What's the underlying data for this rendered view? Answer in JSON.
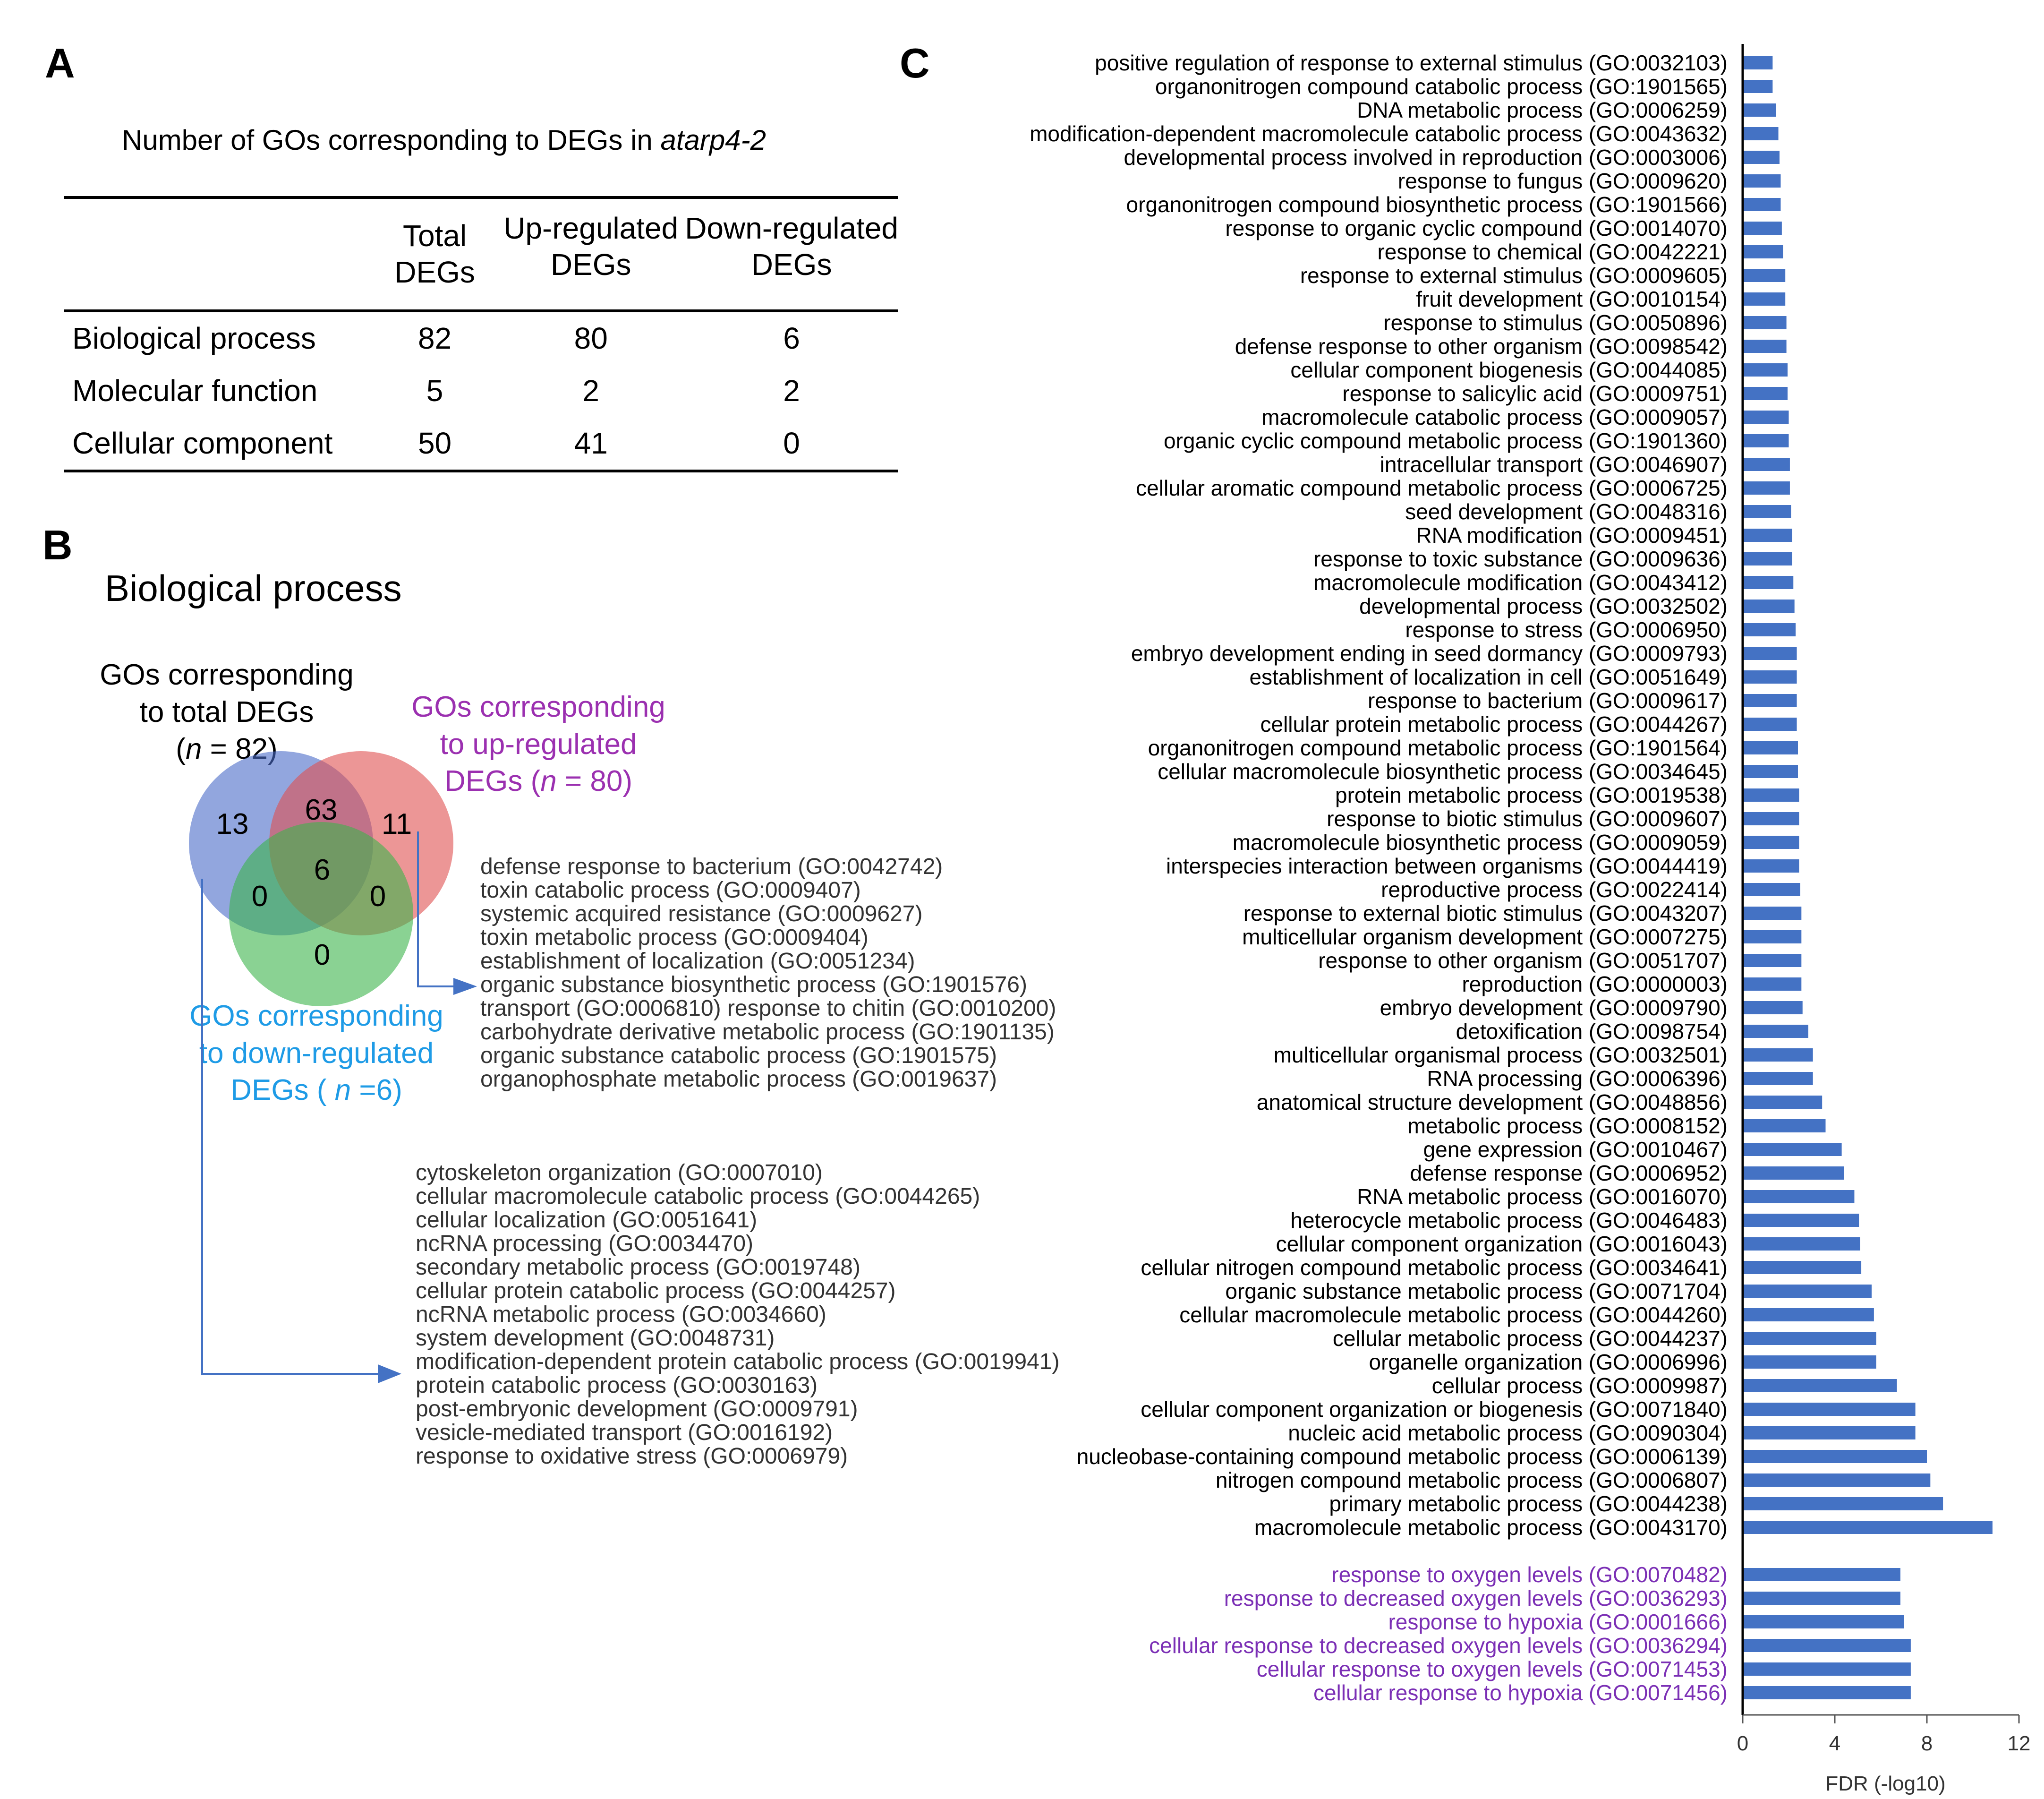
{
  "panel_letters": {
    "a": "A",
    "b": "B",
    "c": "C"
  },
  "table": {
    "caption_prefix": "Number of GOs corresponding to DEGs in ",
    "caption_italic": "atarp4-2",
    "headers": [
      {
        "line1": "Total",
        "line2": "DEGs"
      },
      {
        "line1": "Up-regulated",
        "line2": "DEGs"
      },
      {
        "line1": "Down-regulated",
        "line2": "DEGs"
      }
    ],
    "rows": [
      {
        "label": "Biological process",
        "total": "82",
        "up": "80",
        "down": "6"
      },
      {
        "label": "Molecular function",
        "total": "5",
        "up": "2",
        "down": "2"
      },
      {
        "label": "Cellular component",
        "total": "50",
        "up": "41",
        "down": "0"
      }
    ]
  },
  "venn": {
    "title": "Biological process",
    "label_total": {
      "line1": "GOs corresponding",
      "line2": "to total DEGs",
      "n_open": "(",
      "n_italic": "n",
      "n_rest": " = 82)"
    },
    "label_up": {
      "line1": "GOs corresponding",
      "line2": "to up-regulated",
      "line3_prefix": "DEGs (",
      "n_italic": "n",
      "n_rest": " = 80)"
    },
    "label_down": {
      "line1": "GOs corresponding",
      "line2": "to down-regulated",
      "line3_prefix": "DEGs ( ",
      "n_italic": "n",
      "n_rest": " =6)"
    },
    "regions": {
      "total_only": "13",
      "total_up": "63",
      "up_only": "11",
      "all_three": "6",
      "total_down": "0",
      "up_down": "0",
      "down_only": "0"
    },
    "colors": {
      "total": "#4a6bc8",
      "up": "#e05050",
      "down": "#3cb44b",
      "up_label": "#9b30b0",
      "down_label": "#1e9be6",
      "arrow": "#4472c4"
    }
  },
  "up_only_terms": [
    "defense response to bacterium (GO:0042742)",
    "toxin catabolic process (GO:0009407)",
    "systemic acquired resistance (GO:0009627)",
    "toxin metabolic process (GO:0009404)",
    "establishment of localization (GO:0051234)",
    "organic substance biosynthetic process (GO:1901576)",
    "transport (GO:0006810) response to chitin (GO:0010200)",
    "carbohydrate derivative metabolic process (GO:1901135)",
    "organic substance catabolic process (GO:1901575)",
    "organophosphate metabolic process (GO:0019637)"
  ],
  "total_only_terms": [
    "cytoskeleton organization (GO:0007010)",
    "cellular macromolecule catabolic process (GO:0044265)",
    "cellular localization (GO:0051641)",
    "ncRNA processing (GO:0034470)",
    "secondary metabolic process (GO:0019748)",
    "cellular protein catabolic process (GO:0044257)",
    "ncRNA metabolic process (GO:0034660)",
    "system development (GO:0048731)",
    "modification-dependent protein catabolic process (GO:0019941)",
    "protein catabolic process (GO:0030163)",
    "post-embryonic development (GO:0009791)",
    "vesicle-mediated transport (GO:0016192)",
    "response to oxidative stress (GO:0006979)"
  ],
  "chart_data": {
    "type": "bar",
    "orientation": "horizontal",
    "xlabel": "FDR (-log10)",
    "xlim": [
      0,
      12
    ],
    "xticks": [
      0,
      4,
      8,
      12
    ],
    "bar_color": "#4472c4",
    "groups": [
      {
        "name": "common",
        "label_color": "#000000",
        "bars": [
          {
            "label": "positive regulation of response to external stimulus (GO:0032103)",
            "value": 1.3
          },
          {
            "label": "organonitrogen compound catabolic process (GO:1901565)",
            "value": 1.3
          },
          {
            "label": "DNA metabolic process (GO:0006259)",
            "value": 1.45
          },
          {
            "label": "modification-dependent macromolecule catabolic process (GO:0043632)",
            "value": 1.55
          },
          {
            "label": "developmental process involved in reproduction (GO:0003006)",
            "value": 1.6
          },
          {
            "label": "response to fungus (GO:0009620)",
            "value": 1.65
          },
          {
            "label": "organonitrogen compound biosynthetic process (GO:1901566)",
            "value": 1.65
          },
          {
            "label": "response to organic cyclic compound (GO:0014070)",
            "value": 1.7
          },
          {
            "label": "response to chemical (GO:0042221)",
            "value": 1.75
          },
          {
            "label": "response to external stimulus (GO:0009605)",
            "value": 1.85
          },
          {
            "label": "fruit development (GO:0010154)",
            "value": 1.85
          },
          {
            "label": "response to stimulus (GO:0050896)",
            "value": 1.9
          },
          {
            "label": "defense response to other organism (GO:0098542)",
            "value": 1.9
          },
          {
            "label": "cellular component biogenesis (GO:0044085)",
            "value": 1.95
          },
          {
            "label": "response to salicylic acid (GO:0009751)",
            "value": 1.95
          },
          {
            "label": "macromolecule catabolic process (GO:0009057)",
            "value": 2.0
          },
          {
            "label": "organic cyclic compound metabolic process (GO:1901360)",
            "value": 2.0
          },
          {
            "label": "intracellular transport (GO:0046907)",
            "value": 2.05
          },
          {
            "label": "cellular aromatic compound metabolic process (GO:0006725)",
            "value": 2.05
          },
          {
            "label": "seed development (GO:0048316)",
            "value": 2.1
          },
          {
            "label": "RNA modification (GO:0009451)",
            "value": 2.15
          },
          {
            "label": "response to toxic substance (GO:0009636)",
            "value": 2.15
          },
          {
            "label": "macromolecule modification (GO:0043412)",
            "value": 2.2
          },
          {
            "label": "developmental process (GO:0032502)",
            "value": 2.25
          },
          {
            "label": "response to stress (GO:0006950)",
            "value": 2.3
          },
          {
            "label": "embryo development ending in seed dormancy (GO:0009793)",
            "value": 2.35
          },
          {
            "label": "establishment of localization in cell (GO:0051649)",
            "value": 2.35
          },
          {
            "label": "response to bacterium (GO:0009617)",
            "value": 2.35
          },
          {
            "label": "cellular protein metabolic process (GO:0044267)",
            "value": 2.35
          },
          {
            "label": "organonitrogen compound metabolic process (GO:1901564)",
            "value": 2.4
          },
          {
            "label": "cellular macromolecule biosynthetic process (GO:0034645)",
            "value": 2.4
          },
          {
            "label": "protein metabolic process (GO:0019538)",
            "value": 2.45
          },
          {
            "label": "response to biotic stimulus (GO:0009607)",
            "value": 2.45
          },
          {
            "label": "macromolecule biosynthetic process (GO:0009059)",
            "value": 2.45
          },
          {
            "label": "interspecies interaction between organisms (GO:0044419)",
            "value": 2.45
          },
          {
            "label": "reproductive process (GO:0022414)",
            "value": 2.5
          },
          {
            "label": "response to external biotic stimulus (GO:0043207)",
            "value": 2.55
          },
          {
            "label": "multicellular organism development (GO:0007275)",
            "value": 2.55
          },
          {
            "label": "response to other organism (GO:0051707)",
            "value": 2.55
          },
          {
            "label": "reproduction (GO:0000003)",
            "value": 2.55
          },
          {
            "label": "embryo development (GO:0009790)",
            "value": 2.6
          },
          {
            "label": "detoxification (GO:0098754)",
            "value": 2.85
          },
          {
            "label": "multicellular organismal process (GO:0032501)",
            "value": 3.05
          },
          {
            "label": "RNA processing (GO:0006396)",
            "value": 3.05
          },
          {
            "label": "anatomical structure development (GO:0048856)",
            "value": 3.45
          },
          {
            "label": "metabolic process (GO:0008152)",
            "value": 3.6
          },
          {
            "label": "gene expression (GO:0010467)",
            "value": 4.3
          },
          {
            "label": "defense response (GO:0006952)",
            "value": 4.4
          },
          {
            "label": "RNA metabolic process (GO:0016070)",
            "value": 4.85
          },
          {
            "label": "heterocycle metabolic process (GO:0046483)",
            "value": 5.05
          },
          {
            "label": "cellular component organization (GO:0016043)",
            "value": 5.1
          },
          {
            "label": "cellular nitrogen compound metabolic process (GO:0034641)",
            "value": 5.15
          },
          {
            "label": "organic substance metabolic process (GO:0071704)",
            "value": 5.6
          },
          {
            "label": "cellular macromolecule metabolic process (GO:0044260)",
            "value": 5.7
          },
          {
            "label": "cellular metabolic process (GO:0044237)",
            "value": 5.8
          },
          {
            "label": "organelle organization (GO:0006996)",
            "value": 5.8
          },
          {
            "label": "cellular process (GO:0009987)",
            "value": 6.7
          },
          {
            "label": "cellular component organization or biogenesis (GO:0071840)",
            "value": 7.5
          },
          {
            "label": "nucleic acid metabolic process (GO:0090304)",
            "value": 7.5
          },
          {
            "label": "nucleobase-containing compound metabolic process (GO:0006139)",
            "value": 8.0
          },
          {
            "label": "nitrogen compound metabolic process (GO:0006807)",
            "value": 8.15
          },
          {
            "label": "primary metabolic process (GO:0044238)",
            "value": 8.7
          },
          {
            "label": "macromolecule metabolic process (GO:0043170)",
            "value": 10.85
          }
        ]
      },
      {
        "name": "all_three",
        "label_color": "#7b2fb5",
        "bars": [
          {
            "label": "response to oxygen levels (GO:0070482)",
            "value": 6.85
          },
          {
            "label": "response to decreased oxygen levels (GO:0036293)",
            "value": 6.85
          },
          {
            "label": "response to hypoxia (GO:0001666)",
            "value": 7.0
          },
          {
            "label": "cellular response to decreased oxygen levels (GO:0036294)",
            "value": 7.3
          },
          {
            "label": "cellular response to oxygen levels (GO:0071453)",
            "value": 7.3
          },
          {
            "label": "cellular response to hypoxia (GO:0071456)",
            "value": 7.3
          }
        ]
      }
    ]
  }
}
